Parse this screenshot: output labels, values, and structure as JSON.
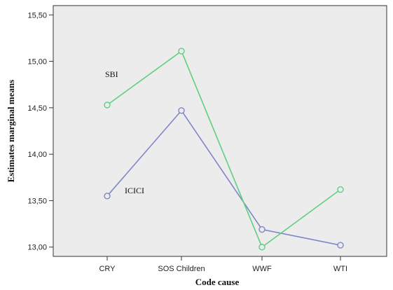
{
  "chart_data": {
    "type": "line",
    "xlabel": "Code cause",
    "ylabel": "Estimates marginal means",
    "categories": [
      "CRY",
      "SOS Children",
      "WWF",
      "WTI"
    ],
    "ylim": [
      12.9,
      15.6
    ],
    "yticks": [
      "13,00",
      "13,50",
      "14,00",
      "14,50",
      "15,00",
      "15,50"
    ],
    "ytick_values": [
      13.0,
      13.5,
      14.0,
      14.5,
      15.0,
      15.5
    ],
    "grid": false,
    "plot_background": "#ececec",
    "series": [
      {
        "name": "SBI",
        "color": "#5fcf80",
        "values": [
          14.53,
          15.11,
          13.0,
          13.62
        ]
      },
      {
        "name": "ICICI",
        "color": "#7f86c9",
        "values": [
          13.55,
          14.47,
          13.19,
          13.02
        ]
      }
    ]
  }
}
